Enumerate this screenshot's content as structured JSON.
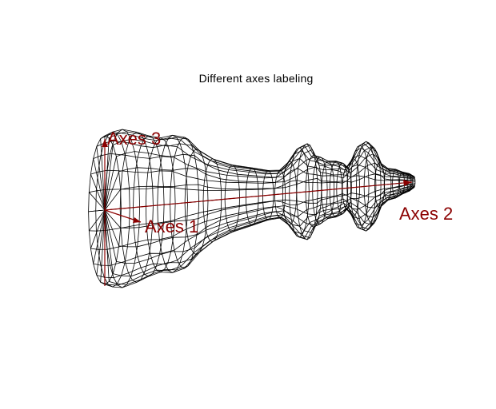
{
  "title": "Different axes labeling",
  "axes": [
    {
      "label": "Axes 1"
    },
    {
      "label": "Axes 2"
    },
    {
      "label": "Axes 3"
    }
  ],
  "colors": {
    "background": "#ffffff",
    "mesh": "#000000",
    "axes": "#8b0000",
    "title": "#000000"
  },
  "model": {
    "name": "chess-king-wireframe",
    "icon": "wireframe-mesh"
  }
}
